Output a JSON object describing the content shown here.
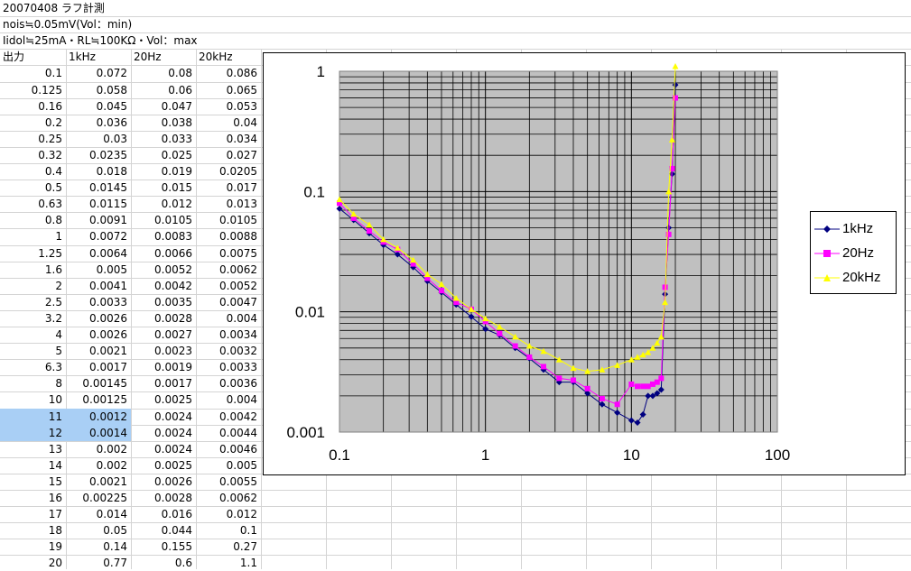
{
  "sheet": {
    "notes": [
      "20070408 ラフ計測",
      "nois≒0.05mV(Vol：min)",
      "Iidol≒25mA・RL≒100KΩ・Vol：max"
    ],
    "headers": [
      "出力",
      "1kHz",
      "20Hz",
      "20kHz"
    ],
    "rows": [
      [
        "0.1",
        "0.072",
        "0.08",
        "0.086"
      ],
      [
        "0.125",
        "0.058",
        "0.06",
        "0.065"
      ],
      [
        "0.16",
        "0.045",
        "0.047",
        "0.053"
      ],
      [
        "0.2",
        "0.036",
        "0.038",
        "0.04"
      ],
      [
        "0.25",
        "0.03",
        "0.033",
        "0.034"
      ],
      [
        "0.32",
        "0.0235",
        "0.025",
        "0.027"
      ],
      [
        "0.4",
        "0.018",
        "0.019",
        "0.0205"
      ],
      [
        "0.5",
        "0.0145",
        "0.015",
        "0.017"
      ],
      [
        "0.63",
        "0.0115",
        "0.012",
        "0.013"
      ],
      [
        "0.8",
        "0.0091",
        "0.0105",
        "0.0105"
      ],
      [
        "1",
        "0.0072",
        "0.0083",
        "0.0088"
      ],
      [
        "1.25",
        "0.0064",
        "0.0066",
        "0.0075"
      ],
      [
        "1.6",
        "0.005",
        "0.0052",
        "0.0062"
      ],
      [
        "2",
        "0.0041",
        "0.0042",
        "0.0052"
      ],
      [
        "2.5",
        "0.0033",
        "0.0035",
        "0.0047"
      ],
      [
        "3.2",
        "0.0026",
        "0.0028",
        "0.004"
      ],
      [
        "4",
        "0.0026",
        "0.0027",
        "0.0034"
      ],
      [
        "5",
        "0.0021",
        "0.0023",
        "0.0032"
      ],
      [
        "6.3",
        "0.0017",
        "0.0019",
        "0.0033"
      ],
      [
        "8",
        "0.00145",
        "0.0017",
        "0.0036"
      ],
      [
        "10",
        "0.00125",
        "0.0025",
        "0.004"
      ],
      [
        "11",
        "0.0012",
        "0.0024",
        "0.0042"
      ],
      [
        "12",
        "0.0014",
        "0.0024",
        "0.0044"
      ],
      [
        "13",
        "0.002",
        "0.0024",
        "0.0046"
      ],
      [
        "14",
        "0.002",
        "0.0025",
        "0.005"
      ],
      [
        "15",
        "0.0021",
        "0.0026",
        "0.0055"
      ],
      [
        "16",
        "0.00225",
        "0.0028",
        "0.0062"
      ],
      [
        "17",
        "0.014",
        "0.016",
        "0.012"
      ],
      [
        "18",
        "0.05",
        "0.044",
        "0.1"
      ],
      [
        "19",
        "0.14",
        "0.155",
        "0.27"
      ],
      [
        "20",
        "0.77",
        "0.6",
        "1.1"
      ]
    ],
    "selected_rows": [
      21,
      22
    ]
  },
  "chart_data": {
    "type": "line",
    "x_scale": "log",
    "y_scale": "log",
    "xlim": [
      0.1,
      100
    ],
    "ylim": [
      0.001,
      1
    ],
    "x_tick_labels": [
      "0.1",
      "1",
      "10",
      "100"
    ],
    "y_tick_labels": [
      "1",
      "0.1",
      "0.01",
      "0.001"
    ],
    "grid": true,
    "plot_bg": "#c0c0c0",
    "legend_position": "right",
    "x": [
      0.1,
      0.125,
      0.16,
      0.2,
      0.25,
      0.32,
      0.4,
      0.5,
      0.63,
      0.8,
      1,
      1.25,
      1.6,
      2,
      2.5,
      3.2,
      4,
      5,
      6.3,
      8,
      10,
      11,
      12,
      13,
      14,
      15,
      16,
      17,
      18,
      19,
      20
    ],
    "series": [
      {
        "name": "1kHz",
        "color": "#000080",
        "marker": "diamond",
        "values": [
          0.072,
          0.058,
          0.045,
          0.036,
          0.03,
          0.0235,
          0.018,
          0.0145,
          0.0115,
          0.0091,
          0.0072,
          0.0064,
          0.005,
          0.0041,
          0.0033,
          0.0026,
          0.0026,
          0.0021,
          0.0017,
          0.00145,
          0.00125,
          0.0012,
          0.0014,
          0.002,
          0.002,
          0.0021,
          0.00225,
          0.014,
          0.05,
          0.14,
          0.77
        ]
      },
      {
        "name": "20Hz",
        "color": "#ff00ff",
        "marker": "square",
        "values": [
          0.08,
          0.06,
          0.047,
          0.038,
          0.033,
          0.025,
          0.019,
          0.015,
          0.012,
          0.0105,
          0.0083,
          0.0066,
          0.0052,
          0.0042,
          0.0035,
          0.0028,
          0.0027,
          0.0023,
          0.0019,
          0.0017,
          0.0025,
          0.0024,
          0.0024,
          0.0024,
          0.0025,
          0.0026,
          0.0028,
          0.016,
          0.044,
          0.155,
          0.6
        ]
      },
      {
        "name": "20kHz",
        "color": "#ffff00",
        "marker": "triangle",
        "values": [
          0.086,
          0.065,
          0.053,
          0.04,
          0.034,
          0.027,
          0.0205,
          0.017,
          0.013,
          0.0105,
          0.0088,
          0.0075,
          0.0062,
          0.0052,
          0.0047,
          0.004,
          0.0034,
          0.0032,
          0.0033,
          0.0036,
          0.004,
          0.0042,
          0.0044,
          0.0046,
          0.005,
          0.0055,
          0.0062,
          0.012,
          0.1,
          0.27,
          1.1
        ]
      }
    ]
  }
}
